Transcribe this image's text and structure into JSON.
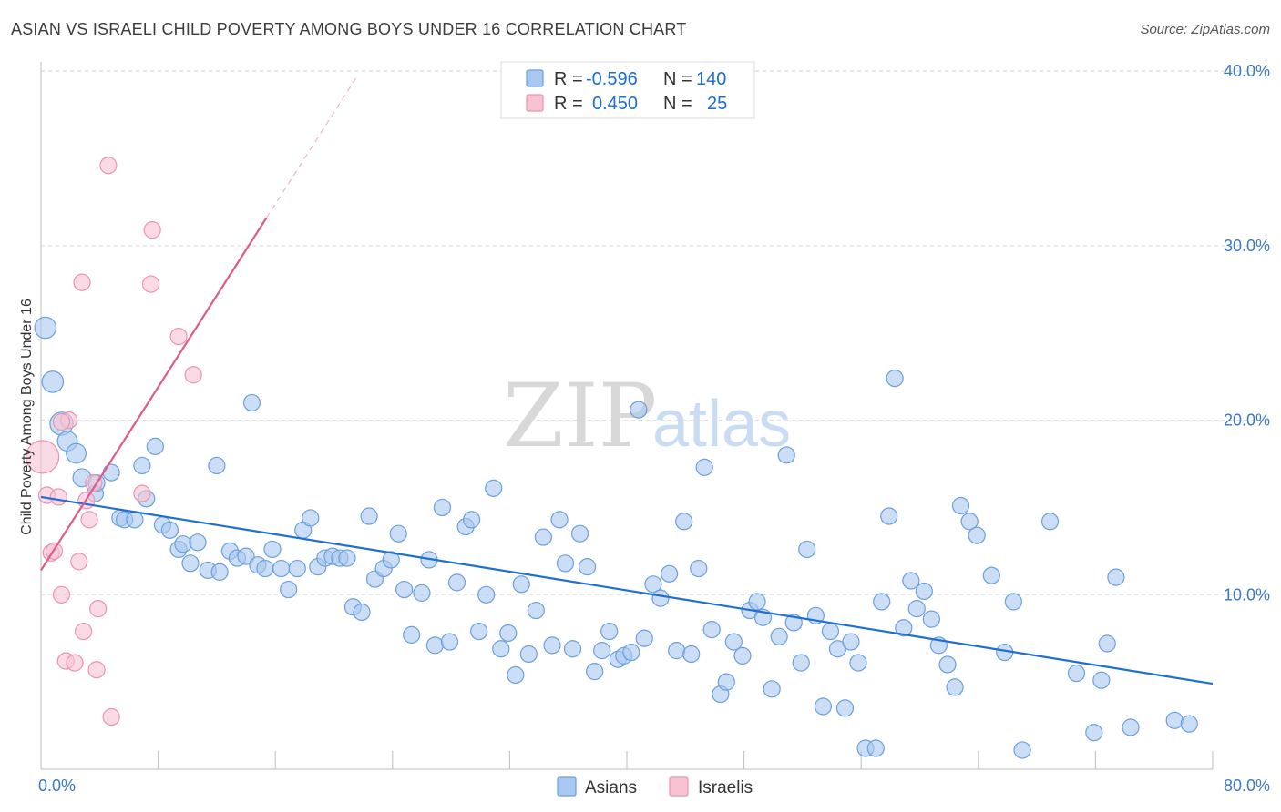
{
  "title": "ASIAN VS ISRAELI CHILD POVERTY AMONG BOYS UNDER 16 CORRELATION CHART",
  "source": "Source: ZipAtlas.com",
  "watermark": {
    "part1": "ZIP",
    "part2": "atlas"
  },
  "colors": {
    "asian_fill": "#a9c8ef",
    "asian_stroke": "#6a9fe0",
    "asian_line": "#1f6fd3",
    "israeli_fill": "#f7c3d3",
    "israeli_stroke": "#ec93ae",
    "israeli_line": "#e05a8a",
    "grid": "#d9d9d9",
    "tick_text": "#3a78c9"
  },
  "legend": {
    "r_label": "R =",
    "n_label": "N =",
    "rows": [
      {
        "series": "Asians",
        "r": "-0.596",
        "n": "140"
      },
      {
        "series": "Israelis",
        "r": "0.450",
        "n": "25"
      }
    ]
  },
  "chart_data": {
    "type": "scatter",
    "title": "ASIAN VS ISRAELI CHILD POVERTY AMONG BOYS UNDER 16 CORRELATION CHART",
    "xlabel": "",
    "ylabel": "Child Poverty Among Boys Under 16",
    "xlim": [
      0,
      80
    ],
    "ylim": [
      0,
      40
    ],
    "x_tick_labels": [
      "0.0%",
      "80.0%"
    ],
    "y_tick_labels": [
      "10.0%",
      "20.0%",
      "30.0%",
      "40.0%"
    ],
    "y_ticks": [
      10,
      20,
      30,
      40
    ],
    "x_ticks_minor": [
      0,
      8,
      16,
      24,
      32,
      40,
      48,
      56,
      64,
      72,
      80
    ],
    "series": [
      {
        "name": "Asians",
        "trend": {
          "x0": 0,
          "y0": 15.6,
          "x1": 80,
          "y1": 4.9
        },
        "points": [
          [
            0.3,
            25.3,
            1.3
          ],
          [
            0.8,
            22.2,
            1.3
          ],
          [
            1.4,
            19.8,
            1.4
          ],
          [
            1.8,
            18.8,
            1.2
          ],
          [
            2.4,
            18.1,
            1.2
          ],
          [
            2.8,
            16.7,
            1.1
          ],
          [
            3.7,
            15.8,
            1.0
          ],
          [
            4.8,
            17.0,
            1.0
          ],
          [
            3.8,
            16.4,
            1.0
          ],
          [
            5.4,
            14.4,
            1.0
          ],
          [
            5.7,
            14.3,
            1.0
          ],
          [
            6.4,
            14.3,
            1.0
          ],
          [
            6.9,
            17.4,
            1.0
          ],
          [
            7.2,
            15.5,
            1.0
          ],
          [
            7.8,
            18.5,
            1.0
          ],
          [
            8.3,
            14.0,
            1.0
          ],
          [
            8.8,
            13.7,
            1.0
          ],
          [
            9.4,
            12.6,
            1.0
          ],
          [
            9.7,
            12.9,
            1.0
          ],
          [
            10.2,
            11.8,
            1.0
          ],
          [
            10.7,
            13.0,
            1.0
          ],
          [
            11.4,
            11.4,
            1.0
          ],
          [
            12.0,
            17.4,
            1.0
          ],
          [
            12.2,
            11.3,
            1.0
          ],
          [
            12.9,
            12.5,
            1.0
          ],
          [
            13.4,
            12.1,
            1.0
          ],
          [
            14.0,
            12.2,
            1.0
          ],
          [
            14.4,
            21.0,
            1.0
          ],
          [
            14.8,
            11.7,
            1.0
          ],
          [
            15.3,
            11.5,
            1.0
          ],
          [
            15.8,
            12.6,
            1.0
          ],
          [
            16.4,
            11.5,
            1.0
          ],
          [
            16.9,
            10.3,
            1.0
          ],
          [
            17.5,
            11.5,
            1.0
          ],
          [
            17.9,
            13.7,
            1.0
          ],
          [
            18.4,
            14.4,
            1.0
          ],
          [
            18.9,
            11.6,
            1.0
          ],
          [
            19.4,
            12.1,
            1.0
          ],
          [
            19.9,
            12.2,
            1.0
          ],
          [
            20.4,
            12.1,
            1.0
          ],
          [
            20.9,
            12.1,
            1.0
          ],
          [
            21.3,
            9.3,
            1.0
          ],
          [
            21.9,
            9.0,
            1.0
          ],
          [
            22.4,
            14.5,
            1.0
          ],
          [
            22.8,
            10.9,
            1.0
          ],
          [
            23.4,
            11.5,
            1.0
          ],
          [
            23.9,
            12.0,
            1.0
          ],
          [
            24.4,
            13.5,
            1.0
          ],
          [
            24.8,
            10.3,
            1.0
          ],
          [
            25.3,
            7.7,
            1.0
          ],
          [
            26.0,
            10.1,
            1.0
          ],
          [
            26.5,
            12.0,
            1.0
          ],
          [
            26.9,
            7.1,
            1.0
          ],
          [
            27.4,
            15.0,
            1.0
          ],
          [
            27.9,
            7.3,
            1.0
          ],
          [
            28.4,
            10.7,
            1.0
          ],
          [
            29.0,
            13.9,
            1.0
          ],
          [
            29.4,
            14.3,
            1.0
          ],
          [
            29.9,
            7.9,
            1.0
          ],
          [
            30.4,
            10.0,
            1.0
          ],
          [
            30.9,
            16.1,
            1.0
          ],
          [
            31.4,
            6.9,
            1.0
          ],
          [
            31.9,
            7.8,
            1.0
          ],
          [
            32.4,
            5.4,
            1.0
          ],
          [
            32.8,
            10.6,
            1.0
          ],
          [
            33.3,
            6.6,
            1.0
          ],
          [
            33.8,
            9.1,
            1.0
          ],
          [
            34.3,
            13.3,
            1.0
          ],
          [
            34.9,
            7.1,
            1.0
          ],
          [
            35.4,
            14.3,
            1.0
          ],
          [
            35.8,
            11.8,
            1.0
          ],
          [
            36.3,
            6.9,
            1.0
          ],
          [
            36.8,
            13.5,
            1.0
          ],
          [
            37.3,
            11.6,
            1.0
          ],
          [
            37.8,
            5.6,
            1.0
          ],
          [
            38.3,
            6.8,
            1.0
          ],
          [
            38.8,
            7.9,
            1.0
          ],
          [
            39.4,
            6.3,
            1.0
          ],
          [
            39.8,
            6.5,
            1.0
          ],
          [
            40.3,
            6.7,
            1.0
          ],
          [
            40.8,
            20.6,
            1.0
          ],
          [
            41.2,
            7.5,
            1.0
          ],
          [
            41.8,
            10.6,
            1.0
          ],
          [
            42.3,
            9.8,
            1.0
          ],
          [
            42.9,
            11.2,
            1.0
          ],
          [
            43.4,
            6.8,
            1.0
          ],
          [
            43.9,
            14.2,
            1.0
          ],
          [
            44.4,
            6.6,
            1.0
          ],
          [
            44.9,
            11.5,
            1.0
          ],
          [
            45.3,
            17.3,
            1.0
          ],
          [
            45.8,
            8.0,
            1.0
          ],
          [
            46.4,
            4.3,
            1.0
          ],
          [
            46.8,
            5.0,
            1.0
          ],
          [
            47.3,
            7.3,
            1.0
          ],
          [
            47.9,
            6.5,
            1.0
          ],
          [
            48.4,
            9.1,
            1.0
          ],
          [
            48.9,
            9.6,
            1.0
          ],
          [
            49.3,
            8.7,
            1.0
          ],
          [
            49.9,
            4.6,
            1.0
          ],
          [
            50.4,
            7.6,
            1.0
          ],
          [
            50.9,
            18.0,
            1.0
          ],
          [
            51.4,
            8.4,
            1.0
          ],
          [
            51.9,
            6.1,
            1.0
          ],
          [
            52.3,
            12.6,
            1.0
          ],
          [
            52.9,
            8.8,
            1.0
          ],
          [
            53.4,
            3.6,
            1.0
          ],
          [
            53.9,
            7.9,
            1.0
          ],
          [
            54.4,
            6.9,
            1.0
          ],
          [
            54.9,
            3.5,
            1.0
          ],
          [
            55.3,
            7.3,
            1.0
          ],
          [
            55.8,
            6.1,
            1.0
          ],
          [
            56.3,
            1.2,
            1.0
          ],
          [
            57.0,
            1.2,
            1.0
          ],
          [
            57.4,
            9.6,
            1.0
          ],
          [
            57.9,
            14.5,
            1.0
          ],
          [
            58.3,
            22.4,
            1.0
          ],
          [
            58.9,
            8.1,
            1.0
          ],
          [
            59.4,
            10.8,
            1.0
          ],
          [
            59.8,
            9.2,
            1.0
          ],
          [
            60.3,
            10.2,
            1.0
          ],
          [
            60.8,
            8.6,
            1.0
          ],
          [
            61.3,
            7.1,
            1.0
          ],
          [
            61.9,
            6.0,
            1.0
          ],
          [
            62.4,
            4.7,
            1.0
          ],
          [
            62.8,
            15.1,
            1.0
          ],
          [
            63.4,
            14.2,
            1.0
          ],
          [
            63.9,
            13.4,
            1.0
          ],
          [
            64.9,
            11.1,
            1.0
          ],
          [
            65.8,
            6.7,
            1.0
          ],
          [
            66.4,
            9.6,
            1.0
          ],
          [
            67.0,
            1.1,
            1.0
          ],
          [
            68.9,
            14.2,
            1.0
          ],
          [
            70.7,
            5.5,
            1.0
          ],
          [
            71.9,
            2.1,
            1.0
          ],
          [
            72.4,
            5.1,
            1.0
          ],
          [
            72.8,
            7.2,
            1.0
          ],
          [
            73.4,
            11.0,
            1.0
          ],
          [
            74.4,
            2.4,
            1.0
          ],
          [
            77.4,
            2.8,
            1.0
          ],
          [
            78.4,
            2.6,
            1.0
          ]
        ]
      },
      {
        "name": "Israelis",
        "trend": {
          "x0": 0,
          "y0": 11.4,
          "x1": 15.4,
          "y1": 31.6,
          "dash_to": {
            "x": 21.5,
            "y": 39.6
          }
        },
        "points": [
          [
            0.1,
            17.9,
            2.0
          ],
          [
            0.4,
            15.7,
            1.0
          ],
          [
            0.7,
            12.4,
            1.0
          ],
          [
            0.9,
            12.5,
            1.0
          ],
          [
            1.2,
            15.6,
            1.0
          ],
          [
            1.4,
            10.0,
            1.0
          ],
          [
            1.7,
            6.2,
            1.0
          ],
          [
            1.9,
            20.0,
            1.0
          ],
          [
            2.3,
            6.1,
            1.0
          ],
          [
            2.6,
            11.9,
            1.0
          ],
          [
            2.8,
            27.9,
            1.0
          ],
          [
            2.9,
            7.9,
            1.0
          ],
          [
            3.1,
            15.4,
            1.0
          ],
          [
            3.3,
            14.3,
            1.0
          ],
          [
            3.6,
            16.4,
            1.0
          ],
          [
            3.8,
            5.7,
            1.0
          ],
          [
            3.9,
            9.2,
            1.0
          ],
          [
            4.6,
            34.6,
            1.0
          ],
          [
            4.8,
            3.0,
            1.0
          ],
          [
            6.9,
            15.8,
            1.0
          ],
          [
            7.6,
            30.9,
            1.0
          ],
          [
            7.5,
            27.8,
            1.0
          ],
          [
            9.4,
            24.8,
            1.0
          ],
          [
            10.4,
            22.6,
            1.0
          ],
          [
            1.4,
            19.9,
            1.0
          ]
        ]
      }
    ]
  }
}
